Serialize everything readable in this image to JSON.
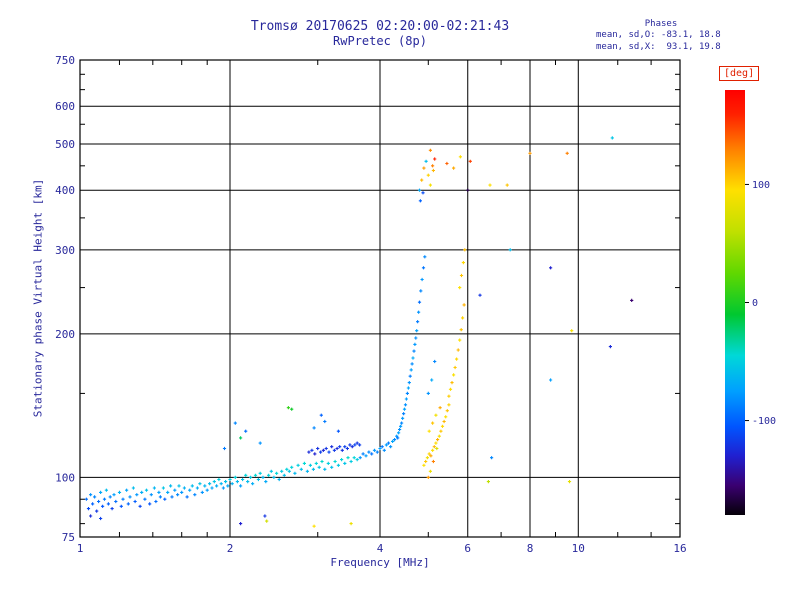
{
  "colors": {
    "text": "#28289b",
    "frame": "#000000",
    "background": "#ffffff",
    "deg_label": "#e02000"
  },
  "header": {
    "title": "Tromsø 20170625 02:20:00-02:21:43",
    "subtitle": "RwPretec (8p)",
    "annotation": {
      "line1": "Phases",
      "line2": "mean, sd,O: -83.1, 18.8",
      "line3": "mean, sd,X:  93.1, 19.8"
    }
  },
  "chart_data": {
    "type": "scatter",
    "title": "Tromsø 20170625 02:20:00-02:21:43",
    "subtitle": "RwPretec (8p)",
    "xlabel": "Frequency [MHz]",
    "ylabel": "Stationary phase Virtual Height [km]",
    "xscale": "log",
    "yscale": "log",
    "xlim": [
      1,
      16
    ],
    "ylim": [
      75,
      750
    ],
    "grid": true,
    "x_ticks": [
      {
        "v": 1,
        "t": "1"
      },
      {
        "v": 2,
        "t": "2"
      },
      {
        "v": 4,
        "t": "4"
      },
      {
        "v": 6,
        "t": "6"
      },
      {
        "v": 8,
        "t": "8"
      },
      {
        "v": 10,
        "t": "10"
      },
      {
        "v": 16,
        "t": "16"
      }
    ],
    "y_ticks": [
      {
        "v": 75,
        "t": "75"
      },
      {
        "v": 100,
        "t": "100"
      },
      {
        "v": 200,
        "t": "200"
      },
      {
        "v": 300,
        "t": "300"
      },
      {
        "v": 400,
        "t": "400"
      },
      {
        "v": 500,
        "t": "500"
      },
      {
        "v": 600,
        "t": "600"
      },
      {
        "v": 750,
        "t": "750"
      }
    ],
    "x_minor": [
      1.2,
      1.4,
      1.6,
      1.8,
      3,
      5,
      7,
      9,
      12,
      14
    ],
    "y_minor": [
      80,
      90,
      150,
      250,
      350,
      450,
      550,
      650,
      700
    ],
    "colorbar": {
      "label": "[deg]",
      "range": [
        -180,
        180
      ],
      "ticks": [
        {
          "v": -100,
          "t": "-100"
        },
        {
          "v": 0,
          "t": "0"
        },
        {
          "v": 100,
          "t": "100"
        }
      ],
      "stops": [
        {
          "v": -180,
          "c": "#050008"
        },
        {
          "v": -155,
          "c": "#3a0070"
        },
        {
          "v": -130,
          "c": "#2020d0"
        },
        {
          "v": -105,
          "c": "#0055ff"
        },
        {
          "v": -75,
          "c": "#00a0ff"
        },
        {
          "v": -45,
          "c": "#00d8d8"
        },
        {
          "v": -10,
          "c": "#00c830"
        },
        {
          "v": 25,
          "c": "#60d800"
        },
        {
          "v": 60,
          "c": "#c0e000"
        },
        {
          "v": 95,
          "c": "#ffe000"
        },
        {
          "v": 130,
          "c": "#ff8000"
        },
        {
          "v": 160,
          "c": "#ff2000"
        },
        {
          "v": 180,
          "c": "#ff0000"
        }
      ]
    },
    "points": [
      [
        1.03,
        90,
        -95
      ],
      [
        1.04,
        86,
        -110
      ],
      [
        1.05,
        92,
        -80
      ],
      [
        1.05,
        83,
        -125
      ],
      [
        1.06,
        88,
        -100
      ],
      [
        1.07,
        91,
        -85
      ],
      [
        1.08,
        85,
        -120
      ],
      [
        1.09,
        89,
        -95
      ],
      [
        1.1,
        93,
        -70
      ],
      [
        1.1,
        82,
        -115
      ],
      [
        1.11,
        87,
        -105
      ],
      [
        1.12,
        90,
        -90
      ],
      [
        1.13,
        94,
        -60
      ],
      [
        1.14,
        88,
        -100
      ],
      [
        1.15,
        91,
        -85
      ],
      [
        1.16,
        86,
        -115
      ],
      [
        1.17,
        92,
        -75
      ],
      [
        1.18,
        89,
        -95
      ],
      [
        1.2,
        93,
        -65
      ],
      [
        1.21,
        87,
        -105
      ],
      [
        1.22,
        90,
        -88
      ],
      [
        1.24,
        94,
        -72
      ],
      [
        1.25,
        88,
        -98
      ],
      [
        1.26,
        91,
        -82
      ],
      [
        1.28,
        95,
        -60
      ],
      [
        1.29,
        89,
        -102
      ],
      [
        1.3,
        92,
        -78
      ],
      [
        1.32,
        87,
        -112
      ],
      [
        1.33,
        93,
        -68
      ],
      [
        1.35,
        90,
        -92
      ],
      [
        1.36,
        94,
        -58
      ],
      [
        1.38,
        88,
        -106
      ],
      [
        1.39,
        92,
        -80
      ],
      [
        1.41,
        95,
        -64
      ],
      [
        1.42,
        89,
        -96
      ],
      [
        1.44,
        93,
        -74
      ],
      [
        1.45,
        91,
        -88
      ],
      [
        1.47,
        95,
        -55
      ],
      [
        1.48,
        90,
        -100
      ],
      [
        1.5,
        93,
        -70
      ],
      [
        1.52,
        96,
        -62
      ],
      [
        1.53,
        91,
        -90
      ],
      [
        1.55,
        94,
        -76
      ],
      [
        1.57,
        92,
        -84
      ],
      [
        1.58,
        96,
        -58
      ],
      [
        1.6,
        93,
        -78
      ],
      [
        1.62,
        95,
        -66
      ],
      [
        1.64,
        91,
        -94
      ],
      [
        1.66,
        94,
        -72
      ],
      [
        1.68,
        96,
        -60
      ],
      [
        1.7,
        92,
        -86
      ],
      [
        1.72,
        95,
        -68
      ],
      [
        1.74,
        97,
        -56
      ],
      [
        1.76,
        93,
        -80
      ],
      [
        1.78,
        96,
        -64
      ],
      [
        1.8,
        94,
        -76
      ],
      [
        1.82,
        97,
        -60
      ],
      [
        1.84,
        95,
        -72
      ],
      [
        1.86,
        98,
        -55
      ],
      [
        1.88,
        96,
        -68
      ],
      [
        1.9,
        99,
        -50
      ],
      [
        1.92,
        97,
        -64
      ],
      [
        1.94,
        95,
        -78
      ],
      [
        1.96,
        98,
        -58
      ],
      [
        1.98,
        96,
        -70
      ],
      [
        2.0,
        99,
        -52
      ],
      [
        2.02,
        97,
        -66
      ],
      [
        2.05,
        100,
        -48
      ],
      [
        2.07,
        98,
        -62
      ],
      [
        2.1,
        96,
        -74
      ],
      [
        2.12,
        99,
        -56
      ],
      [
        2.15,
        101,
        -46
      ],
      [
        2.17,
        98,
        -60
      ],
      [
        2.2,
        100,
        -52
      ],
      [
        2.22,
        97,
        -68
      ],
      [
        2.25,
        101,
        -44
      ],
      [
        2.28,
        99,
        -58
      ],
      [
        2.3,
        102,
        -50
      ],
      [
        2.33,
        100,
        -62
      ],
      [
        2.36,
        98,
        -70
      ],
      [
        2.39,
        101,
        -48
      ],
      [
        2.42,
        103,
        -54
      ],
      [
        2.45,
        100,
        -60
      ],
      [
        2.48,
        102,
        -46
      ],
      [
        2.51,
        99,
        -64
      ],
      [
        2.54,
        103,
        -52
      ],
      [
        2.57,
        101,
        -58
      ],
      [
        2.6,
        104,
        -48
      ],
      [
        1.95,
        115,
        -90
      ],
      [
        2.05,
        130,
        -85
      ],
      [
        2.1,
        121,
        -20
      ],
      [
        2.15,
        125,
        -95
      ],
      [
        2.3,
        118,
        -80
      ],
      [
        2.62,
        140,
        8
      ],
      [
        2.1,
        80,
        -130
      ],
      [
        2.35,
        83,
        -120
      ],
      [
        2.63,
        103,
        -55
      ],
      [
        2.66,
        105,
        -48
      ],
      [
        2.7,
        102,
        -62
      ],
      [
        2.74,
        106,
        -50
      ],
      [
        2.78,
        104,
        -58
      ],
      [
        2.82,
        107,
        -44
      ],
      [
        2.86,
        103,
        -64
      ],
      [
        2.9,
        106,
        -52
      ],
      [
        2.94,
        104,
        -60
      ],
      [
        2.98,
        107,
        -46
      ],
      [
        3.02,
        105,
        -56
      ],
      [
        3.06,
        108,
        -42
      ],
      [
        3.1,
        104,
        -62
      ],
      [
        3.15,
        107,
        -50
      ],
      [
        3.2,
        105,
        -58
      ],
      [
        3.25,
        108,
        -44
      ],
      [
        3.3,
        106,
        -54
      ],
      [
        3.35,
        109,
        -46
      ],
      [
        3.4,
        107,
        -56
      ],
      [
        3.45,
        110,
        -42
      ],
      [
        3.5,
        108,
        -52
      ],
      [
        3.55,
        110,
        -46
      ],
      [
        3.6,
        109,
        -50
      ],
      [
        2.88,
        113,
        -125
      ],
      [
        2.92,
        114,
        -118
      ],
      [
        2.96,
        112,
        -130
      ],
      [
        3.0,
        115,
        -122
      ],
      [
        3.04,
        113,
        -115
      ],
      [
        3.08,
        114,
        -128
      ],
      [
        3.12,
        115,
        -120
      ],
      [
        3.16,
        113,
        -112
      ],
      [
        3.2,
        116,
        -124
      ],
      [
        3.24,
        114,
        -118
      ],
      [
        3.28,
        115,
        -126
      ],
      [
        3.32,
        116,
        -116
      ],
      [
        3.36,
        114,
        -122
      ],
      [
        3.4,
        116,
        -114
      ],
      [
        3.44,
        115,
        -120
      ],
      [
        3.48,
        117,
        -118
      ],
      [
        3.52,
        116,
        -124
      ],
      [
        3.56,
        117,
        -112
      ],
      [
        3.6,
        118,
        -120
      ],
      [
        3.64,
        117,
        -116
      ],
      [
        2.37,
        81,
        70
      ],
      [
        2.95,
        79,
        95
      ],
      [
        3.05,
        135,
        -100
      ],
      [
        3.1,
        131,
        -90
      ],
      [
        2.95,
        127,
        -85
      ],
      [
        3.5,
        80,
        85
      ],
      [
        2.66,
        139,
        -5
      ],
      [
        3.3,
        125,
        -105
      ],
      [
        3.65,
        110,
        -80
      ],
      [
        3.7,
        112,
        -88
      ],
      [
        3.75,
        111,
        -76
      ],
      [
        3.8,
        113,
        -84
      ],
      [
        3.85,
        112,
        -92
      ],
      [
        3.9,
        114,
        -78
      ],
      [
        3.95,
        113,
        -86
      ],
      [
        4.0,
        115,
        -74
      ],
      [
        4.04,
        116,
        -90
      ],
      [
        4.08,
        114,
        -82
      ],
      [
        4.12,
        117,
        -76
      ],
      [
        4.16,
        118,
        -88
      ],
      [
        4.2,
        116,
        -80
      ],
      [
        4.24,
        119,
        -72
      ],
      [
        4.28,
        120,
        -84
      ],
      [
        4.32,
        122,
        -78
      ],
      [
        4.34,
        121,
        -90
      ],
      [
        4.36,
        124,
        -74
      ],
      [
        4.38,
        126,
        -82
      ],
      [
        4.4,
        128,
        -76
      ],
      [
        4.42,
        130,
        -85
      ],
      [
        4.44,
        133,
        -78
      ],
      [
        4.46,
        136,
        -88
      ],
      [
        4.48,
        139,
        -74
      ],
      [
        4.5,
        142,
        -82
      ],
      [
        4.52,
        146,
        -76
      ],
      [
        4.54,
        150,
        -86
      ],
      [
        4.56,
        154,
        -72
      ],
      [
        4.58,
        158,
        -80
      ],
      [
        4.6,
        163,
        -88
      ],
      [
        4.62,
        168,
        -75
      ],
      [
        4.64,
        173,
        -83
      ],
      [
        4.66,
        178,
        -70
      ],
      [
        4.68,
        184,
        -86
      ],
      [
        4.7,
        190,
        -78
      ],
      [
        4.72,
        196,
        -82
      ],
      [
        4.74,
        203,
        -74
      ],
      [
        4.76,
        212,
        -90
      ],
      [
        4.78,
        222,
        -80
      ],
      [
        4.8,
        233,
        -95
      ],
      [
        4.83,
        246,
        -85
      ],
      [
        4.86,
        260,
        -78
      ],
      [
        4.89,
        275,
        -92
      ],
      [
        4.92,
        290,
        -84
      ],
      [
        4.8,
        400,
        -70
      ],
      [
        4.85,
        420,
        110
      ],
      [
        4.9,
        445,
        120
      ],
      [
        4.95,
        460,
        -60
      ],
      [
        5.0,
        430,
        100
      ],
      [
        5.05,
        410,
        90
      ],
      [
        5.1,
        450,
        130
      ],
      [
        5.15,
        465,
        160
      ],
      [
        4.82,
        380,
        -100
      ],
      [
        4.88,
        395,
        -110
      ],
      [
        5.05,
        485,
        125
      ],
      [
        5.12,
        440,
        110
      ],
      [
        4.9,
        106,
        95
      ],
      [
        4.94,
        108,
        105
      ],
      [
        4.98,
        110,
        88
      ],
      [
        5.02,
        112,
        100
      ],
      [
        5.06,
        111,
        115
      ],
      [
        5.1,
        114,
        92
      ],
      [
        5.14,
        116,
        108
      ],
      [
        5.18,
        118,
        96
      ],
      [
        5.22,
        120,
        112
      ],
      [
        5.26,
        122,
        90
      ],
      [
        5.3,
        125,
        104
      ],
      [
        5.34,
        128,
        98
      ],
      [
        5.38,
        131,
        110
      ],
      [
        5.42,
        134,
        94
      ],
      [
        5.46,
        138,
        106
      ],
      [
        5.5,
        142,
        100
      ],
      [
        5.0,
        100,
        120
      ],
      [
        5.05,
        103,
        85
      ],
      [
        5.12,
        108,
        130
      ],
      [
        5.2,
        115,
        75
      ],
      [
        5.02,
        125,
        95
      ],
      [
        5.1,
        130,
        105
      ],
      [
        5.18,
        135,
        88
      ],
      [
        5.28,
        140,
        115
      ],
      [
        5.0,
        150,
        -80
      ],
      [
        5.08,
        160,
        -70
      ],
      [
        5.15,
        175,
        -85
      ],
      [
        5.5,
        148,
        102
      ],
      [
        5.54,
        153,
        96
      ],
      [
        5.58,
        158,
        108
      ],
      [
        5.62,
        164,
        92
      ],
      [
        5.66,
        170,
        104
      ],
      [
        5.7,
        177,
        98
      ],
      [
        5.74,
        185,
        110
      ],
      [
        5.78,
        194,
        94
      ],
      [
        5.82,
        204,
        106
      ],
      [
        5.86,
        216,
        100
      ],
      [
        5.9,
        230,
        112
      ],
      [
        5.78,
        250,
        95
      ],
      [
        5.83,
        265,
        105
      ],
      [
        5.88,
        282,
        98
      ],
      [
        5.92,
        300,
        108
      ],
      [
        5.45,
        455,
        140
      ],
      [
        5.62,
        445,
        115
      ],
      [
        5.8,
        470,
        95
      ],
      [
        6.0,
        400,
        -165
      ],
      [
        6.07,
        460,
        150
      ],
      [
        6.35,
        241,
        -120
      ],
      [
        6.65,
        410,
        95
      ],
      [
        6.6,
        98,
        60
      ],
      [
        6.7,
        110,
        -85
      ],
      [
        7.2,
        410,
        105
      ],
      [
        7.3,
        300,
        -60
      ],
      [
        8.0,
        478,
        120
      ],
      [
        8.8,
        275,
        -130
      ],
      [
        8.8,
        160,
        -75
      ],
      [
        9.5,
        478,
        130
      ],
      [
        9.7,
        203,
        90
      ],
      [
        9.6,
        98,
        80
      ],
      [
        11.7,
        515,
        -55
      ],
      [
        11.6,
        188,
        -125
      ],
      [
        12.8,
        235,
        -155
      ]
    ]
  }
}
